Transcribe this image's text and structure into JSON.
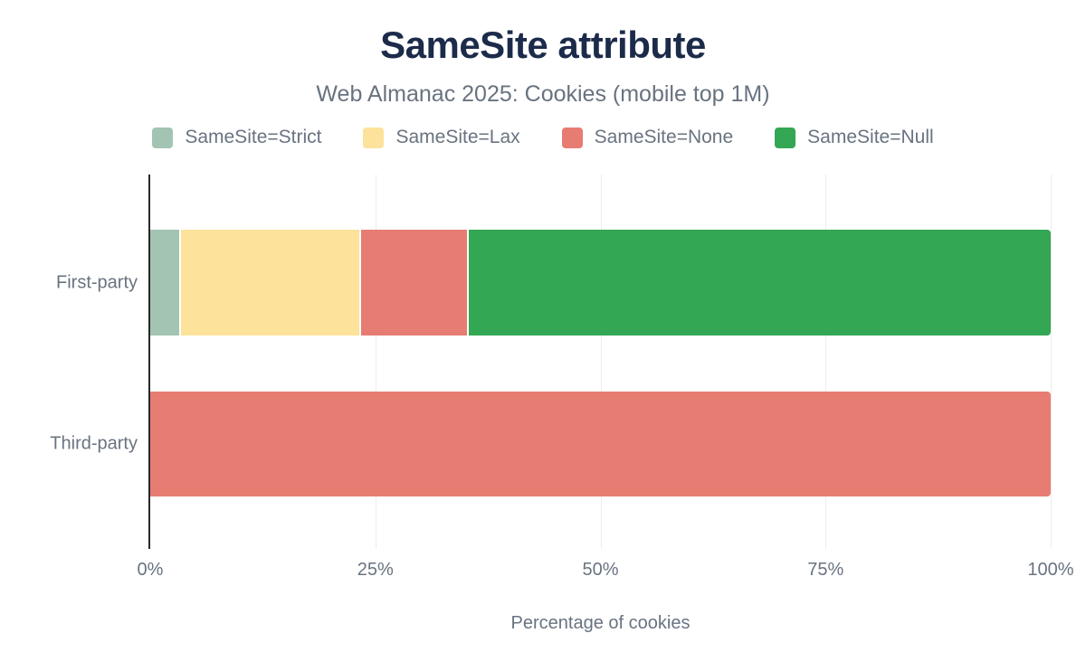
{
  "chart_data": {
    "type": "bar",
    "orientation": "horizontal-stacked",
    "title": "SameSite attribute",
    "subtitle": "Web Almanac 2025: Cookies (mobile top 1M)",
    "xlabel": "Percentage of cookies",
    "categories": [
      "First-party",
      "Third-party"
    ],
    "series": [
      {
        "name": "SameSite=Strict",
        "color": "#a3c4b2",
        "values": [
          3.2,
          0
        ]
      },
      {
        "name": "SameSite=Lax",
        "color": "#fce29a",
        "values": [
          20.0,
          0
        ]
      },
      {
        "name": "SameSite=None",
        "color": "#e77c73",
        "values": [
          12.0,
          100
        ]
      },
      {
        "name": "SameSite=Null",
        "color": "#33a754",
        "values": [
          64.8,
          0
        ]
      }
    ],
    "xlim": [
      0,
      100
    ],
    "xticks": [
      "0%",
      "25%",
      "50%",
      "75%",
      "100%"
    ],
    "legend_position": "top",
    "grid": "vertical-light"
  },
  "colors": {
    "title": "#1c2b4a",
    "text": "#697380",
    "axis": "#26282b",
    "gridline": "#ededed",
    "background": "#ffffff"
  }
}
